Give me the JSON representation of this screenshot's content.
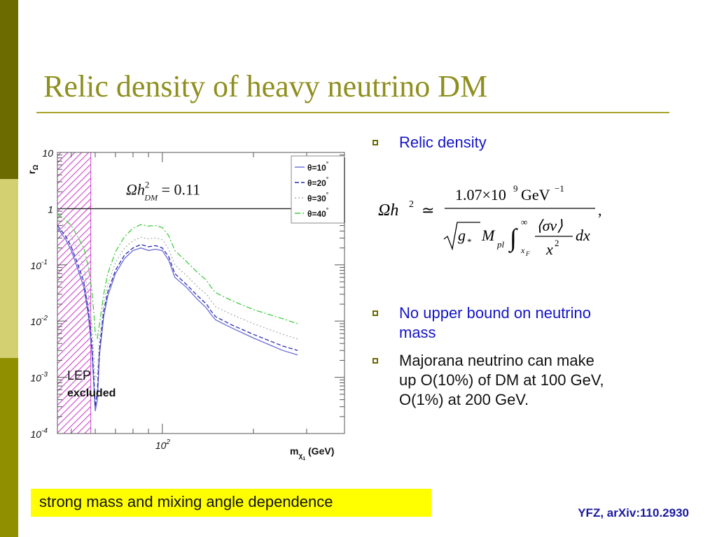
{
  "slide": {
    "title": "Relic density of heavy neutrino DM",
    "colors": {
      "title": "#8f8f1f",
      "accent_olive": "#7b7b00",
      "bullet_blue": "#1414c8",
      "highlight": "#ffff00"
    }
  },
  "bullets": [
    {
      "text": "Relic density",
      "color": "blue"
    },
    {
      "text_lines": [
        "No upper bound on neutrino",
        "mass"
      ],
      "color": "blue"
    },
    {
      "text_lines": [
        "Majorana neutrino can make",
        "up O(10%) of DM at 100 GeV,",
        "O(1%) at 200 GeV."
      ],
      "color": "black"
    }
  ],
  "formula": {
    "lhs": "Ωh",
    "lhs_exp": "2",
    "approx": "≃",
    "numerator": "1.07×10",
    "num_exp": "9",
    "num_unit": "GeV",
    "num_unit_exp": "−1",
    "denominator_g": "g",
    "g_sub": "*",
    "denominator_M": "M",
    "M_sub": "pl",
    "integral_upper": "∞",
    "integral_lower": "x",
    "lower_sub": "F",
    "integrand_num": "⟨σv⟩",
    "integrand_den": "x",
    "integrand_den_exp": "2",
    "dx": "dx",
    "comma": ","
  },
  "highlight_text": "strong mass and mixing angle dependence",
  "citation": "YFZ, arXiv:110.2930",
  "chart_data": {
    "type": "line",
    "yscale": "log",
    "xscale": "log",
    "ylim": [
      0.0001,
      10
    ],
    "xlim": [
      45,
      400
    ],
    "y_ticks": [
      {
        "value": 10,
        "label": "10"
      },
      {
        "value": 1,
        "label": "1"
      },
      {
        "value": 0.1,
        "label": "10",
        "exp": "-1"
      },
      {
        "value": 0.01,
        "label": "10",
        "exp": "-2"
      },
      {
        "value": 0.001,
        "label": "10",
        "exp": "-3"
      },
      {
        "value": 0.0001,
        "label": "10",
        "exp": "-4"
      }
    ],
    "x_tick_label": {
      "value": 100,
      "label": "10",
      "exp": "2"
    },
    "xlabel": {
      "main": "m",
      "sub": "χ",
      "subsub": "1",
      "unit": " (GeV)"
    },
    "ylabel": {
      "main": "r",
      "sub": "Ω"
    },
    "reference_line": {
      "value": 1,
      "annotation": "Ωh",
      "annotation_exp": "2",
      "annotation_sub": "DM",
      "annotation_rhs": "= 0.11"
    },
    "excluded_region": {
      "x_range": [
        45,
        58
      ],
      "label": "LEP",
      "label2": "excluded",
      "color": "#cc44cc"
    },
    "legend": {
      "position": "top-right",
      "entries": [
        {
          "prefix": "θ=10",
          "suffix": "°",
          "color": "#6a6ad8",
          "dash": "solid"
        },
        {
          "prefix": "θ=20",
          "suffix": "°",
          "color": "#2a2ab0",
          "dash": "dash"
        },
        {
          "prefix": "θ=30",
          "suffix": "°",
          "color": "#aab0b0",
          "dash": "dot"
        },
        {
          "prefix": "θ=40",
          "suffix": "°",
          "color": "#44cc44",
          "dash": "dashdot"
        }
      ]
    },
    "series": [
      {
        "name": "θ=10°",
        "color": "#6a6ad8",
        "dash": "solid",
        "points": [
          [
            45,
            0.45
          ],
          [
            48,
            0.28
          ],
          [
            50,
            0.18
          ],
          [
            52,
            0.1
          ],
          [
            55,
            0.04
          ],
          [
            57,
            0.012
          ],
          [
            58.5,
            0.003
          ],
          [
            59.5,
            0.0006
          ],
          [
            60,
            0.00025
          ],
          [
            61,
            0.0004
          ],
          [
            62,
            0.0025
          ],
          [
            64,
            0.012
          ],
          [
            66,
            0.028
          ],
          [
            70,
            0.07
          ],
          [
            75,
            0.13
          ],
          [
            80,
            0.18
          ],
          [
            85,
            0.2
          ],
          [
            90,
            0.18
          ],
          [
            95,
            0.19
          ],
          [
            100,
            0.18
          ],
          [
            105,
            0.12
          ],
          [
            110,
            0.06
          ],
          [
            120,
            0.04
          ],
          [
            130,
            0.025
          ],
          [
            140,
            0.017
          ],
          [
            145,
            0.013
          ],
          [
            150,
            0.0105
          ],
          [
            170,
            0.0075
          ],
          [
            200,
            0.005
          ],
          [
            250,
            0.003
          ],
          [
            280,
            0.0025
          ]
        ]
      },
      {
        "name": "θ=20°",
        "color": "#2a2ab0",
        "dash": "dash",
        "points": [
          [
            45,
            0.5
          ],
          [
            48,
            0.32
          ],
          [
            50,
            0.21
          ],
          [
            52,
            0.12
          ],
          [
            55,
            0.05
          ],
          [
            57,
            0.015
          ],
          [
            58.5,
            0.004
          ],
          [
            59.5,
            0.0008
          ],
          [
            60,
            0.0003
          ],
          [
            61,
            0.0006
          ],
          [
            62,
            0.0032
          ],
          [
            64,
            0.015
          ],
          [
            66,
            0.033
          ],
          [
            70,
            0.08
          ],
          [
            75,
            0.15
          ],
          [
            80,
            0.2
          ],
          [
            85,
            0.23
          ],
          [
            90,
            0.21
          ],
          [
            95,
            0.22
          ],
          [
            100,
            0.2
          ],
          [
            105,
            0.14
          ],
          [
            110,
            0.07
          ],
          [
            120,
            0.045
          ],
          [
            130,
            0.029
          ],
          [
            140,
            0.02
          ],
          [
            145,
            0.015
          ],
          [
            150,
            0.012
          ],
          [
            170,
            0.0085
          ],
          [
            200,
            0.0058
          ],
          [
            250,
            0.0036
          ],
          [
            280,
            0.003
          ]
        ]
      },
      {
        "name": "θ=30°",
        "color": "#aab0b0",
        "dash": "dot",
        "points": [
          [
            45,
            0.65
          ],
          [
            48,
            0.45
          ],
          [
            50,
            0.32
          ],
          [
            52,
            0.2
          ],
          [
            55,
            0.09
          ],
          [
            57,
            0.03
          ],
          [
            58.5,
            0.008
          ],
          [
            59.5,
            0.002
          ],
          [
            60,
            0.0009
          ],
          [
            61,
            0.0012
          ],
          [
            62,
            0.005
          ],
          [
            64,
            0.02
          ],
          [
            66,
            0.045
          ],
          [
            70,
            0.11
          ],
          [
            75,
            0.2
          ],
          [
            80,
            0.27
          ],
          [
            85,
            0.31
          ],
          [
            90,
            0.29
          ],
          [
            95,
            0.3
          ],
          [
            100,
            0.28
          ],
          [
            105,
            0.19
          ],
          [
            110,
            0.1
          ],
          [
            120,
            0.065
          ],
          [
            130,
            0.042
          ],
          [
            140,
            0.03
          ],
          [
            145,
            0.023
          ],
          [
            150,
            0.018
          ],
          [
            170,
            0.013
          ],
          [
            200,
            0.009
          ],
          [
            250,
            0.0058
          ],
          [
            280,
            0.0048
          ]
        ]
      },
      {
        "name": "θ=40°",
        "color": "#44cc44",
        "dash": "dashdot",
        "points": [
          [
            45,
            0.8
          ],
          [
            48,
            0.62
          ],
          [
            50,
            0.5
          ],
          [
            52,
            0.35
          ],
          [
            55,
            0.2
          ],
          [
            57,
            0.09
          ],
          [
            58.5,
            0.035
          ],
          [
            59.5,
            0.012
          ],
          [
            60,
            0.006
          ],
          [
            61,
            0.005
          ],
          [
            62,
            0.009
          ],
          [
            64,
            0.03
          ],
          [
            66,
            0.07
          ],
          [
            70,
            0.17
          ],
          [
            75,
            0.32
          ],
          [
            80,
            0.45
          ],
          [
            85,
            0.52
          ],
          [
            90,
            0.49
          ],
          [
            95,
            0.5
          ],
          [
            100,
            0.46
          ],
          [
            105,
            0.33
          ],
          [
            110,
            0.18
          ],
          [
            120,
            0.115
          ],
          [
            130,
            0.075
          ],
          [
            140,
            0.053
          ],
          [
            145,
            0.04
          ],
          [
            150,
            0.032
          ],
          [
            170,
            0.023
          ],
          [
            200,
            0.016
          ],
          [
            250,
            0.011
          ],
          [
            280,
            0.009
          ]
        ]
      }
    ]
  }
}
